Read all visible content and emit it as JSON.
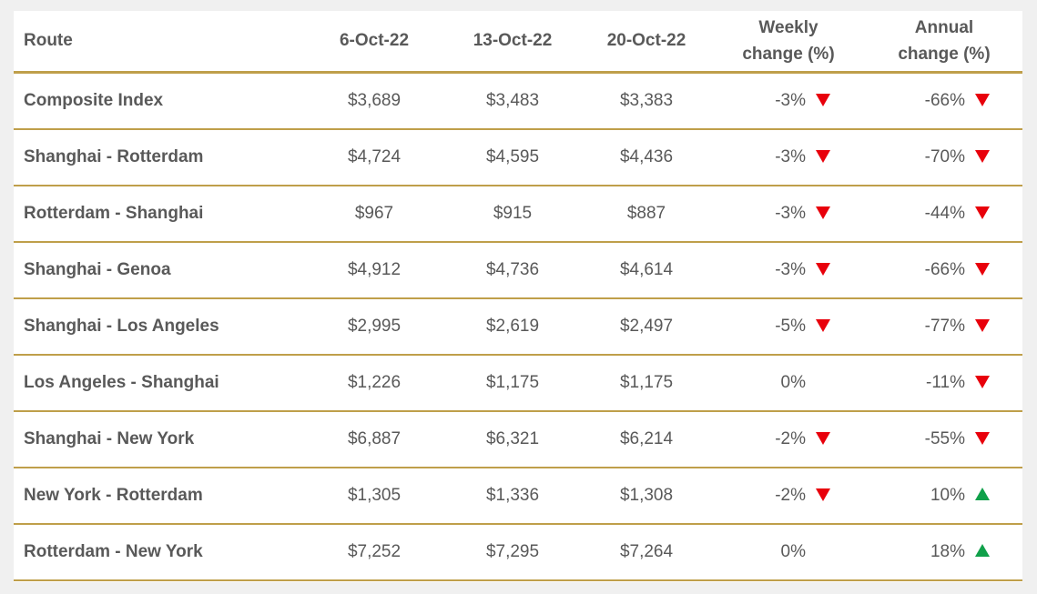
{
  "table": {
    "headers": [
      "Route",
      "6-Oct-22",
      "13-Oct-22",
      "20-Oct-22",
      "Weekly change (%)",
      "Annual change (%)"
    ],
    "rows": [
      [
        "Composite Index",
        "$3,689",
        "$3,483",
        "$3,383",
        "-3%",
        "-66%"
      ],
      [
        "Shanghai - Rotterdam",
        "$4,724",
        "$4,595",
        "$4,436",
        "-3%",
        "-70%"
      ],
      [
        "Rotterdam - Shanghai",
        "$967",
        "$915",
        "$887",
        "-3%",
        "-44%"
      ],
      [
        "Shanghai - Genoa",
        "$4,912",
        "$4,736",
        "$4,614",
        "-3%",
        "-66%"
      ],
      [
        "Shanghai - Los Angeles",
        "$2,995",
        "$2,619",
        "$2,497",
        "-5%",
        "-77%"
      ],
      [
        "Los Angeles - Shanghai",
        "$1,226",
        "$1,175",
        "$1,175",
        "0%",
        "-11%"
      ],
      [
        "Shanghai - New York",
        "$6,887",
        "$6,321",
        "$6,214",
        "-2%",
        "-55%"
      ],
      [
        "New York - Rotterdam",
        "$1,305",
        "$1,336",
        "$1,308",
        "-2%",
        "10%"
      ],
      [
        "Rotterdam - New York",
        "$7,252",
        "$7,295",
        "$7,264",
        "0%",
        "18%"
      ]
    ]
  }
}
